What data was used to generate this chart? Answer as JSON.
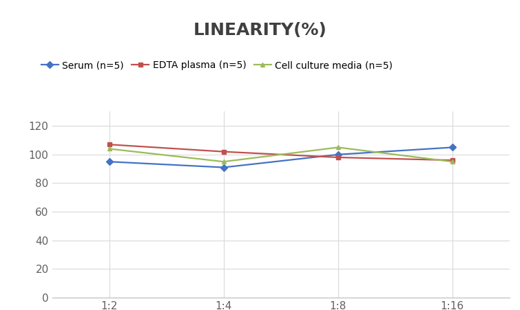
{
  "title": "LINEARITY(%)",
  "x_labels": [
    "1:2",
    "1:4",
    "1:8",
    "1:16"
  ],
  "x_positions": [
    0,
    1,
    2,
    3
  ],
  "series": [
    {
      "label": "Serum (n=5)",
      "values": [
        95,
        91,
        100,
        105
      ],
      "color": "#4472C4",
      "marker": "D",
      "markersize": 5,
      "linewidth": 1.6
    },
    {
      "label": "EDTA plasma (n=5)",
      "values": [
        107,
        102,
        98,
        96
      ],
      "color": "#C0504D",
      "marker": "s",
      "markersize": 5,
      "linewidth": 1.6
    },
    {
      "label": "Cell culture media (n=5)",
      "values": [
        104,
        95,
        105,
        95
      ],
      "color": "#9BBB59",
      "marker": "^",
      "markersize": 5,
      "linewidth": 1.6
    }
  ],
  "ylim": [
    0,
    130
  ],
  "yticks": [
    0,
    20,
    40,
    60,
    80,
    100,
    120
  ],
  "background_color": "#FFFFFF",
  "title_fontsize": 18,
  "legend_fontsize": 10,
  "tick_fontsize": 11,
  "grid_color": "#D9D9D9",
  "title_color": "#404040",
  "tick_color": "#606060"
}
